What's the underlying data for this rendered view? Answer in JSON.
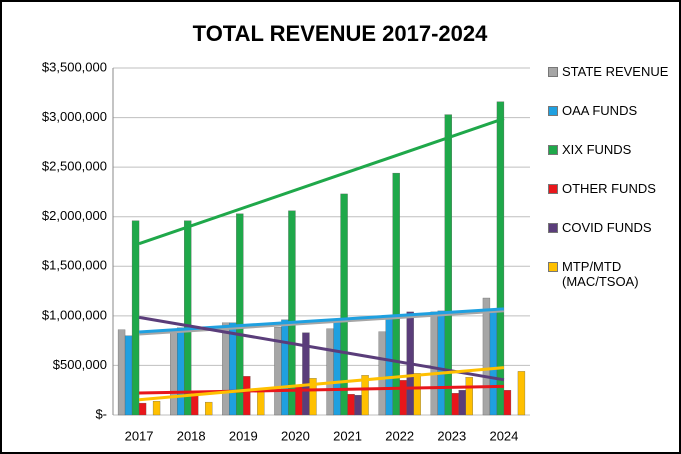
{
  "chart_data": {
    "type": "bar",
    "title": "TOTAL REVENUE 2017-2024",
    "categories": [
      "2017",
      "2018",
      "2019",
      "2020",
      "2021",
      "2022",
      "2023",
      "2024"
    ],
    "series": [
      {
        "name": "STATE REVENUE",
        "color": "#a6a6a6",
        "values": [
          860000,
          870000,
          930000,
          885000,
          870000,
          840000,
          1040000,
          1180000
        ]
      },
      {
        "name": "OAA FUNDS",
        "color": "#1fa0e0",
        "values": [
          800000,
          880000,
          930000,
          960000,
          960000,
          1000000,
          1050000,
          1050000
        ]
      },
      {
        "name": "XIX FUNDS",
        "color": "#1fa84a",
        "values": [
          1960000,
          1960000,
          2030000,
          2060000,
          2230000,
          2440000,
          3030000,
          3160000
        ]
      },
      {
        "name": "OTHER FUNDS",
        "color": "#e8161b",
        "values": [
          120000,
          200000,
          390000,
          300000,
          210000,
          350000,
          220000,
          250000
        ]
      },
      {
        "name": "COVID FUNDS",
        "color": "#5a3d7a",
        "values": [
          null,
          null,
          null,
          830000,
          200000,
          1040000,
          250000,
          null
        ]
      },
      {
        "name": "MTP/MTD (MAC/TSOA)",
        "color": "#ffc000",
        "values": [
          140000,
          130000,
          250000,
          370000,
          400000,
          420000,
          380000,
          440000
        ]
      }
    ],
    "ylim": [
      0,
      3500000
    ],
    "yticks": [
      {
        "value": 0,
        "label": "$-"
      },
      {
        "value": 500000,
        "label": "$500,000"
      },
      {
        "value": 1000000,
        "label": "$1,000,000"
      },
      {
        "value": 1500000,
        "label": "$1,500,000"
      },
      {
        "value": 2000000,
        "label": "$2,000,000"
      },
      {
        "value": 2500000,
        "label": "$2,500,000"
      },
      {
        "value": 3000000,
        "label": "$3,000,000"
      },
      {
        "value": 3500000,
        "label": "$3,500,000"
      }
    ],
    "grid": true,
    "trendline": true,
    "legend": "right"
  }
}
